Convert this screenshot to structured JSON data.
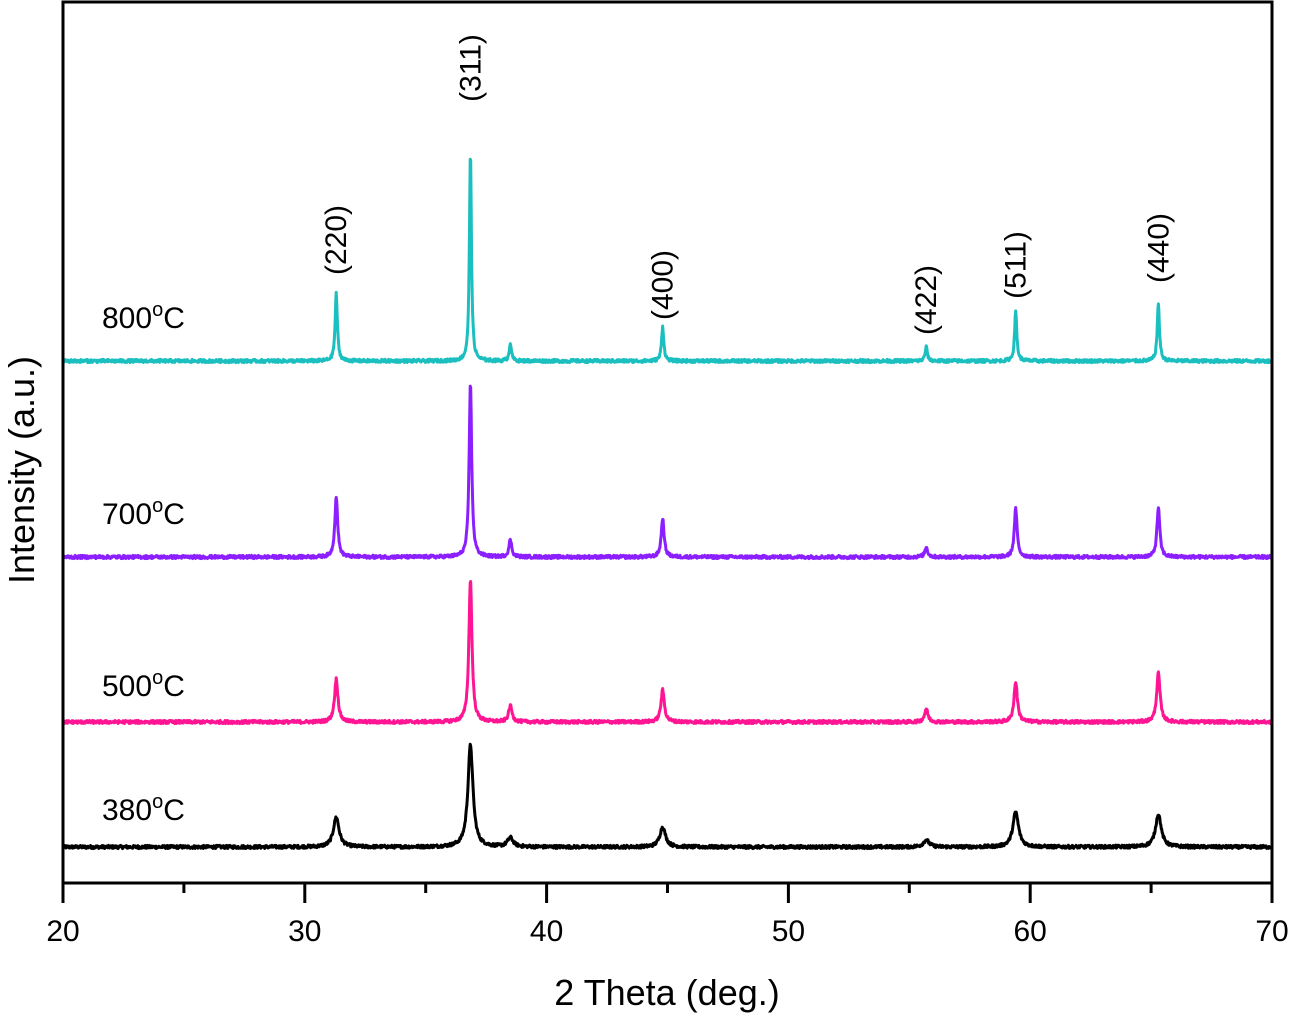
{
  "chart_data": {
    "type": "line",
    "title": "",
    "xlabel": "2 Theta (deg.)",
    "ylabel": "Intensity (a.u.)",
    "xlim": [
      20,
      70
    ],
    "ylim": [
      0,
      881
    ],
    "xticks": [
      "20",
      "30",
      "40",
      "50",
      "60",
      "70"
    ],
    "xtick_values": [
      20,
      30,
      40,
      50,
      60,
      70
    ],
    "minor_xticks": [
      25,
      35,
      45,
      55,
      65
    ],
    "grid": false,
    "legend": "none (inline series labels at left)",
    "peak_positions": [
      31.3,
      36.85,
      38.5,
      44.8,
      55.7,
      59.4,
      65.3
    ],
    "annotations": [
      {
        "text": "(220)",
        "x": 31.3
      },
      {
        "text": "(311)",
        "x": 36.85
      },
      {
        "text": "(400)",
        "x": 44.8
      },
      {
        "text": "(422)",
        "x": 55.7
      },
      {
        "text": "(511)",
        "x": 59.4
      },
      {
        "text": "(440)",
        "x": 65.3
      }
    ],
    "series": [
      {
        "name": "380°C",
        "label": {
          "temp": "380",
          "deg": "o",
          "unit": "C"
        },
        "color": "#000000",
        "baseline": 36,
        "width": 0.28,
        "peak_heights": [
          30,
          102,
          9,
          20,
          7,
          35,
          33
        ]
      },
      {
        "name": "500°C",
        "label": {
          "temp": "500",
          "deg": "o",
          "unit": "C"
        },
        "color": "#ff1493",
        "baseline": 161,
        "width": 0.17,
        "peak_heights": [
          43,
          142,
          16,
          32,
          13,
          40,
          49
        ]
      },
      {
        "name": "700°C",
        "label": {
          "temp": "700",
          "deg": "o",
          "unit": "C"
        },
        "color": "#8b1fff",
        "baseline": 326,
        "width": 0.14,
        "peak_heights": [
          61,
          174,
          17,
          39,
          10,
          48,
          50
        ]
      },
      {
        "name": "800°C",
        "label": {
          "temp": "800",
          "deg": "o",
          "unit": "C"
        },
        "color": "#1cbfbf",
        "baseline": 522,
        "width": 0.11,
        "peak_heights": [
          68,
          210,
          18,
          35,
          14,
          49,
          58
        ]
      }
    ]
  }
}
